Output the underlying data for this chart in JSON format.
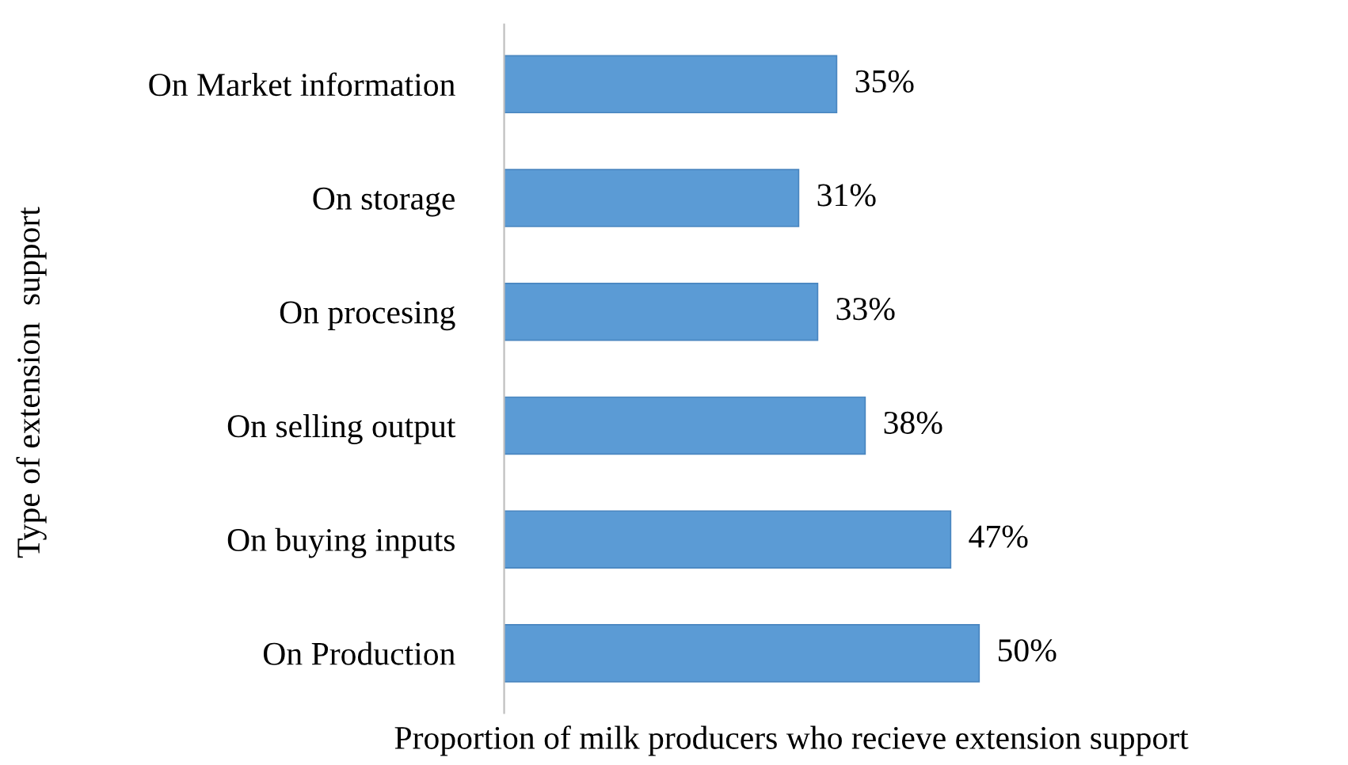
{
  "chart_data": {
    "type": "bar",
    "orientation": "horizontal",
    "xlabel": "Proportion of milk producers who recieve extension support",
    "ylabel": "Type of extension  support",
    "categories": [
      "On Market information",
      "On storage",
      "On procesing",
      "On selling output",
      "On buying inputs",
      "On Production"
    ],
    "values": [
      35,
      31,
      33,
      38,
      47,
      50
    ],
    "value_labels": [
      "35%",
      "31%",
      "33%",
      "38%",
      "47%",
      "50%"
    ],
    "color": "#5b9bd5",
    "grid": false,
    "legend": false
  }
}
